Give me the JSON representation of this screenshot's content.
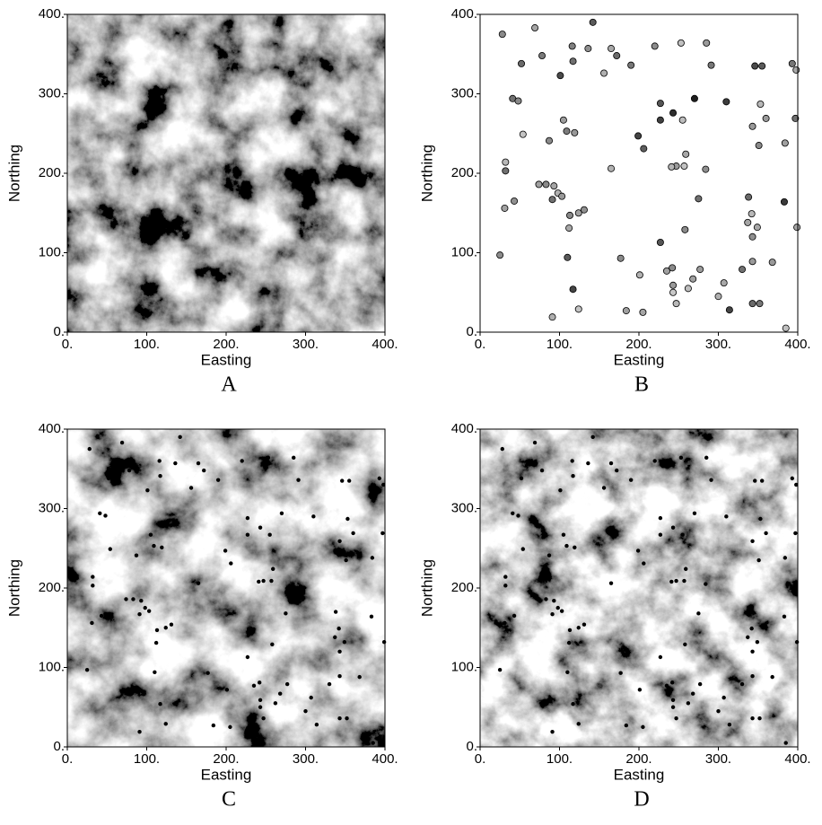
{
  "chart_data": [
    {
      "type": "map",
      "label": "A",
      "xlabel": "Easting",
      "ylabel": "Northing",
      "xlim": [
        0,
        400
      ],
      "ylim": [
        0,
        400
      ],
      "xticks": [
        {
          "value": 0,
          "label": "0."
        },
        {
          "value": 100,
          "label": "100."
        },
        {
          "value": 200,
          "label": "200."
        },
        {
          "value": 300,
          "label": "300."
        },
        {
          "value": 400,
          "label": "400."
        }
      ],
      "yticks": [
        {
          "value": 0,
          "label": "0."
        },
        {
          "value": 100,
          "label": "100."
        },
        {
          "value": 200,
          "label": "200."
        },
        {
          "value": 300,
          "label": "300."
        },
        {
          "value": 400,
          "label": "400."
        }
      ]
    },
    {
      "type": "scatter",
      "label": "B",
      "xlabel": "Easting",
      "ylabel": "Northing",
      "xlim": [
        0,
        400
      ],
      "ylim": [
        0,
        400
      ],
      "xticks": [
        {
          "value": 0,
          "label": "0."
        },
        {
          "value": 100,
          "label": "100."
        },
        {
          "value": 200,
          "label": "200."
        },
        {
          "value": 300,
          "label": "300."
        },
        {
          "value": 400,
          "label": "400."
        }
      ],
      "yticks": [
        {
          "value": 0,
          "label": "0."
        },
        {
          "value": 100,
          "label": "100."
        },
        {
          "value": 200,
          "label": "200."
        },
        {
          "value": 300,
          "label": "300."
        },
        {
          "value": 400,
          "label": "400."
        }
      ],
      "series": [
        {
          "x": [
            28,
            69,
            142,
            52,
            78,
            116,
            117,
            101,
            136,
            165,
            172,
            190,
            156,
            220,
            253,
            285,
            291,
            41,
            48,
            87,
            105,
            109,
            119,
            54,
            199,
            206,
            227,
            243,
            227,
            255,
            270,
            310,
            346,
            355,
            393,
            398,
            397,
            360,
            353,
            343,
            351,
            384,
            257,
            247,
            241,
            259,
            284,
            165,
            32,
            32,
            43,
            31,
            25,
            74,
            83,
            93,
            98,
            103,
            91,
            113,
            124,
            131,
            112,
            110,
            117,
            124,
            91,
            177,
            184,
            205,
            201,
            227,
            235,
            242,
            243,
            243,
            247,
            262,
            268,
            277,
            258,
            275,
            300,
            307,
            314,
            330,
            337,
            338,
            342,
            343,
            349,
            343,
            352,
            368,
            383,
            399,
            385,
            343
          ],
          "values": [
            375,
            383,
            390,
            338,
            348,
            360,
            341,
            323,
            357,
            357,
            348,
            336,
            326,
            360,
            364,
            364,
            336,
            294,
            291,
            241,
            267,
            253,
            251,
            249,
            247,
            231,
            288,
            276,
            267,
            267,
            294,
            290,
            335,
            335,
            338,
            330,
            269,
            269,
            287,
            259,
            235,
            238,
            209,
            209,
            208,
            224,
            205,
            206,
            214,
            203,
            165,
            156,
            97,
            186,
            186,
            184,
            175,
            171,
            167,
            147,
            150,
            154,
            131,
            94,
            54,
            29,
            19,
            93,
            27,
            25,
            72,
            113,
            77,
            81,
            50,
            59,
            36,
            55,
            67,
            79,
            129,
            168,
            45,
            62,
            28,
            79,
            138,
            170,
            149,
            120,
            132,
            36,
            36,
            88,
            164,
            132,
            5,
            89
          ],
          "colors": [
            "#8a8a8a",
            "#a5a5a5",
            "#5a5a5a",
            "#6a6a6a",
            "#7a7a7a",
            "#808080",
            "#6f6f6f",
            "#4a4a4a",
            "#909090",
            "#a8a8a8",
            "#6a6a6a",
            "#777777",
            "#b0b0b0",
            "#8c8c8c",
            "#c0c0c0",
            "#9a9a9a",
            "#777777",
            "#707070",
            "#888888",
            "#8a8a8a",
            "#9c9c9c",
            "#7c7c7c",
            "#999999",
            "#c4c4c4",
            "#444444",
            "#5e5e5e",
            "#555555",
            "#2e2e2e",
            "#404040",
            "#bdbdbd",
            "#1e1e1e",
            "#3c3c3c",
            "#4a4a4a",
            "#5a5a5a",
            "#777777",
            "#a8a8a8",
            "#6e6e6e",
            "#9a9a9a",
            "#b8b8b8",
            "#999999",
            "#8a8a8a",
            "#a0a0a0",
            "#c2c2c2",
            "#9c9c9c",
            "#b5b5b5",
            "#a6a6a6",
            "#8e8e8e",
            "#b2b2b2",
            "#b8b8b8",
            "#707070",
            "#909090",
            "#a2a2a2",
            "#8c8c8c",
            "#a0a0a0",
            "#8a8a8a",
            "#a5a5a5",
            "#b0b0b0",
            "#999999",
            "#707070",
            "#888888",
            "#a0a0a0",
            "#909090",
            "#a8a8a8",
            "#5a5a5a",
            "#444444",
            "#c4c4c4",
            "#b0b0b0",
            "#8a8a8a",
            "#a0a0a0",
            "#a5a5a5",
            "#b2b2b2",
            "#555555",
            "#a0a0a0",
            "#8a8a8a",
            "#c8c8c8",
            "#999999",
            "#b8b8b8",
            "#bebebe",
            "#a0a0a0",
            "#9c9c9c",
            "#8a8a8a",
            "#707070",
            "#b0b0b0",
            "#a8a8a8",
            "#444444",
            "#707070",
            "#a5a5a5",
            "#6a6a6a",
            "#b8b8b8",
            "#909090",
            "#a8a8a8",
            "#6a6a6a",
            "#777777",
            "#999999",
            "#3a3a3a",
            "#a5a5a5",
            "#c0c0c0",
            "#9a9a9a"
          ]
        }
      ]
    },
    {
      "type": "map",
      "label": "C",
      "xlabel": "Easting",
      "ylabel": "Northing",
      "xlim": [
        0,
        400
      ],
      "ylim": [
        0,
        400
      ],
      "sample_color": "#000000",
      "xticks": [
        {
          "value": 0,
          "label": "0."
        },
        {
          "value": 100,
          "label": "100."
        },
        {
          "value": 200,
          "label": "200."
        },
        {
          "value": 300,
          "label": "300."
        },
        {
          "value": 400,
          "label": "400."
        }
      ],
      "yticks": [
        {
          "value": 0,
          "label": "0."
        },
        {
          "value": 100,
          "label": "100."
        },
        {
          "value": 200,
          "label": "200."
        },
        {
          "value": 300,
          "label": "300."
        },
        {
          "value": 400,
          "label": "400."
        }
      ]
    },
    {
      "type": "map",
      "label": "D",
      "xlabel": "Easting",
      "ylabel": "Northing",
      "xlim": [
        0,
        400
      ],
      "ylim": [
        0,
        400
      ],
      "sample_color": "#000000",
      "xticks": [
        {
          "value": 0,
          "label": "0."
        },
        {
          "value": 100,
          "label": "100."
        },
        {
          "value": 200,
          "label": "200."
        },
        {
          "value": 300,
          "label": "300."
        },
        {
          "value": 400,
          "label": "400."
        }
      ],
      "yticks": [
        {
          "value": 0,
          "label": "0."
        },
        {
          "value": 100,
          "label": "100."
        },
        {
          "value": 200,
          "label": "200."
        },
        {
          "value": 300,
          "label": "300."
        },
        {
          "value": 400,
          "label": "400."
        }
      ]
    }
  ]
}
